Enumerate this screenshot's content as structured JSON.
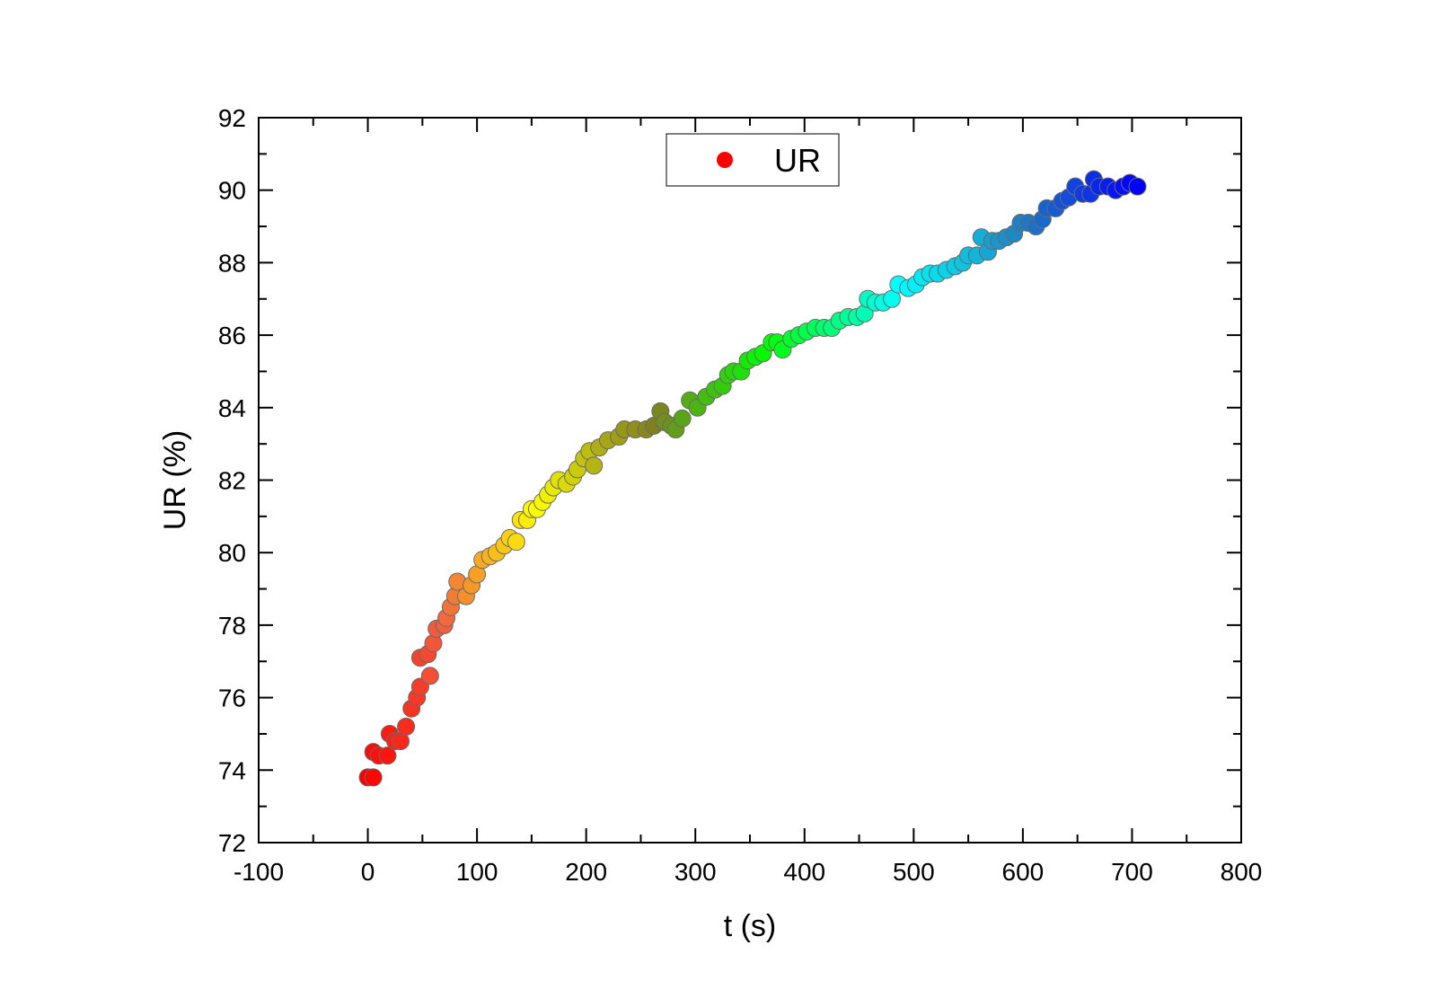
{
  "chart_data": {
    "type": "scatter",
    "title": "",
    "xlabel": "t (s)",
    "ylabel": "UR (%)",
    "xlim": [
      -100,
      800
    ],
    "ylim": [
      72,
      92
    ],
    "x_ticks": [
      -100,
      0,
      100,
      200,
      300,
      400,
      500,
      600,
      700,
      800
    ],
    "y_ticks": [
      72,
      74,
      76,
      78,
      80,
      82,
      84,
      86,
      88,
      90,
      92
    ],
    "grid": false,
    "legend": {
      "position": "top-center",
      "entries": [
        {
          "label": "UR",
          "color": "#ff0000"
        }
      ]
    },
    "marker_color_gradient": [
      "#ff0000",
      "#f06040",
      "#ffff00",
      "#808020",
      "#00ff00",
      "#00ffff",
      "#2080c0",
      "#0000ff"
    ],
    "series": [
      {
        "name": "UR",
        "points": [
          [
            0,
            73.8
          ],
          [
            5,
            73.8
          ],
          [
            5,
            74.5
          ],
          [
            10,
            74.4
          ],
          [
            18,
            74.4
          ],
          [
            20,
            75.0
          ],
          [
            25,
            74.8
          ],
          [
            30,
            74.8
          ],
          [
            35,
            75.2
          ],
          [
            40,
            75.7
          ],
          [
            45,
            76.0
          ],
          [
            48,
            76.3
          ],
          [
            48,
            77.1
          ],
          [
            55,
            77.2
          ],
          [
            57,
            76.6
          ],
          [
            60,
            77.5
          ],
          [
            63,
            77.9
          ],
          [
            70,
            78.0
          ],
          [
            72,
            78.2
          ],
          [
            76,
            78.5
          ],
          [
            80,
            78.8
          ],
          [
            82,
            79.2
          ],
          [
            90,
            78.8
          ],
          [
            95,
            79.1
          ],
          [
            100,
            79.4
          ],
          [
            105,
            79.8
          ],
          [
            112,
            79.9
          ],
          [
            118,
            80.0
          ],
          [
            125,
            80.2
          ],
          [
            130,
            80.4
          ],
          [
            136,
            80.3
          ],
          [
            140,
            80.9
          ],
          [
            146,
            80.9
          ],
          [
            150,
            81.2
          ],
          [
            155,
            81.2
          ],
          [
            160,
            81.4
          ],
          [
            165,
            81.6
          ],
          [
            170,
            81.8
          ],
          [
            175,
            82.0
          ],
          [
            182,
            81.9
          ],
          [
            188,
            82.1
          ],
          [
            192,
            82.3
          ],
          [
            198,
            82.6
          ],
          [
            203,
            82.8
          ],
          [
            207,
            82.4
          ],
          [
            212,
            82.9
          ],
          [
            220,
            83.1
          ],
          [
            230,
            83.2
          ],
          [
            235,
            83.4
          ],
          [
            245,
            83.4
          ],
          [
            255,
            83.4
          ],
          [
            262,
            83.5
          ],
          [
            268,
            83.9
          ],
          [
            272,
            83.6
          ],
          [
            278,
            83.5
          ],
          [
            282,
            83.4
          ],
          [
            288,
            83.7
          ],
          [
            295,
            84.2
          ],
          [
            302,
            84.0
          ],
          [
            310,
            84.3
          ],
          [
            318,
            84.5
          ],
          [
            325,
            84.6
          ],
          [
            330,
            84.9
          ],
          [
            335,
            85.0
          ],
          [
            342,
            85.0
          ],
          [
            348,
            85.3
          ],
          [
            355,
            85.4
          ],
          [
            362,
            85.5
          ],
          [
            370,
            85.8
          ],
          [
            375,
            85.8
          ],
          [
            380,
            85.6
          ],
          [
            388,
            85.9
          ],
          [
            395,
            86.0
          ],
          [
            402,
            86.1
          ],
          [
            410,
            86.2
          ],
          [
            418,
            86.2
          ],
          [
            425,
            86.2
          ],
          [
            432,
            86.4
          ],
          [
            440,
            86.5
          ],
          [
            448,
            86.5
          ],
          [
            455,
            86.6
          ],
          [
            458,
            87.0
          ],
          [
            465,
            86.9
          ],
          [
            472,
            86.9
          ],
          [
            480,
            87.0
          ],
          [
            486,
            87.4
          ],
          [
            495,
            87.3
          ],
          [
            502,
            87.4
          ],
          [
            508,
            87.6
          ],
          [
            515,
            87.7
          ],
          [
            522,
            87.7
          ],
          [
            530,
            87.8
          ],
          [
            538,
            87.9
          ],
          [
            545,
            88.0
          ],
          [
            550,
            88.2
          ],
          [
            558,
            88.2
          ],
          [
            562,
            88.7
          ],
          [
            568,
            88.3
          ],
          [
            572,
            88.6
          ],
          [
            578,
            88.6
          ],
          [
            585,
            88.7
          ],
          [
            592,
            88.8
          ],
          [
            598,
            89.1
          ],
          [
            605,
            89.1
          ],
          [
            612,
            89.0
          ],
          [
            618,
            89.2
          ],
          [
            622,
            89.5
          ],
          [
            630,
            89.5
          ],
          [
            636,
            89.7
          ],
          [
            642,
            89.8
          ],
          [
            648,
            90.1
          ],
          [
            655,
            89.9
          ],
          [
            662,
            89.9
          ],
          [
            665,
            90.3
          ],
          [
            670,
            90.1
          ],
          [
            678,
            90.1
          ],
          [
            685,
            90.0
          ],
          [
            692,
            90.1
          ],
          [
            698,
            90.2
          ],
          [
            705,
            90.1
          ]
        ]
      }
    ]
  }
}
